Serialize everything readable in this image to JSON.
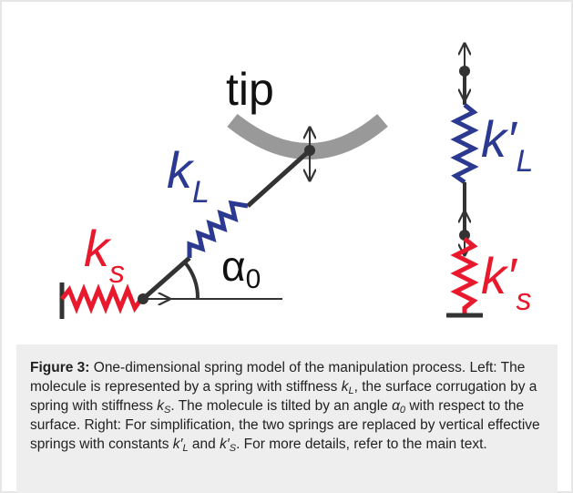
{
  "figure": {
    "labels": {
      "tip": "tip",
      "k_L": {
        "base": "k",
        "sub": "L"
      },
      "k_s": {
        "base": "k",
        "sub": "s"
      },
      "alpha": {
        "base": "α",
        "sub": "0"
      },
      "k_L_prime": {
        "base": "k′",
        "sub": "L"
      },
      "k_s_prime": {
        "base": "k′",
        "sub": "s"
      }
    }
  },
  "caption": {
    "label": "Figure 3:",
    "segments": [
      {
        "text": " One-dimensional spring model of the manipulation process. Left: The molecule is represented by a spring with stiffness "
      },
      {
        "var": "k",
        "sub": "L"
      },
      {
        "text": ", the surface corrugation by a spring with stiffness "
      },
      {
        "var": "k",
        "sub": "S"
      },
      {
        "text": ". The molecule is tilted by an angle "
      },
      {
        "var": "α",
        "sub": "0"
      },
      {
        "text": " with respect to the surface. Right: For simplification, the two springs are replaced by vertical effective springs with constants "
      },
      {
        "var": "k′",
        "sub": "L"
      },
      {
        "text": " and "
      },
      {
        "var": "k′",
        "sub": "S"
      },
      {
        "text": ". For more details, refer to the main text."
      }
    ]
  }
}
